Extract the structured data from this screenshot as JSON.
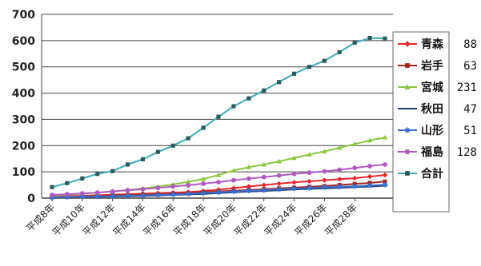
{
  "chart_data": {
    "type": "line",
    "title": "",
    "xlabel": "",
    "ylabel": "",
    "ylim": [
      0,
      700
    ],
    "yticks": [
      0,
      100,
      200,
      300,
      400,
      500,
      600,
      700
    ],
    "grid": true,
    "legend_position": "right",
    "x": [
      "平成8年",
      "平成9年",
      "平成10年",
      "平成11年",
      "平成12年",
      "平成13年",
      "平成14年",
      "平成15年",
      "平成16年",
      "平成17年",
      "平成18年",
      "平成19年",
      "平成20年",
      "平成21年",
      "平成22年",
      "平成23年",
      "平成24年",
      "平成25年",
      "平成26年",
      "平成27年",
      "平成28年",
      "平成29年",
      "平成30年"
    ],
    "x_tick_labels": [
      "平成8年",
      "平成10年",
      "平成12年",
      "平成14年",
      "平成16年",
      "平成18年",
      "平成20年",
      "平成22年",
      "平成24年",
      "平成26年",
      "平成28年"
    ],
    "series": [
      {
        "name": "青森",
        "total_label": "88",
        "color": "#e8262b",
        "marker": "diamond",
        "values": [
          5,
          7,
          9,
          11,
          13,
          15,
          17,
          19,
          21,
          23,
          27,
          32,
          38,
          44,
          50,
          55,
          60,
          64,
          68,
          72,
          76,
          82,
          88
        ]
      },
      {
        "name": "岩手",
        "total_label": "63",
        "color": "#a0281e",
        "marker": "square",
        "values": [
          3,
          5,
          6,
          8,
          10,
          11,
          13,
          15,
          17,
          19,
          22,
          25,
          28,
          31,
          34,
          37,
          40,
          43,
          46,
          50,
          54,
          58,
          63
        ]
      },
      {
        "name": "宮城",
        "total_label": "231",
        "color": "#8dc63f",
        "marker": "triangle",
        "values": [
          10,
          13,
          17,
          21,
          26,
          31,
          37,
          44,
          52,
          62,
          73,
          88,
          105,
          118,
          128,
          140,
          153,
          166,
          178,
          192,
          206,
          220,
          231
        ]
      },
      {
        "name": "秋田",
        "total_label": "47",
        "color": "#1f3b6e",
        "marker": "dash",
        "values": [
          2,
          3,
          4,
          5,
          6,
          7,
          8,
          10,
          12,
          14,
          16,
          19,
          22,
          25,
          27,
          30,
          33,
          35,
          37,
          39,
          42,
          44,
          47
        ]
      },
      {
        "name": "山形",
        "total_label": "51",
        "color": "#3a6fd0",
        "marker": "star",
        "values": [
          3,
          4,
          5,
          6,
          7,
          9,
          10,
          12,
          14,
          16,
          19,
          22,
          25,
          28,
          30,
          33,
          36,
          38,
          41,
          43,
          45,
          48,
          51
        ]
      },
      {
        "name": "福島",
        "total_label": "128",
        "color": "#b05ac0",
        "marker": "circle",
        "values": [
          12,
          15,
          18,
          21,
          25,
          30,
          34,
          39,
          44,
          49,
          55,
          61,
          68,
          74,
          80,
          86,
          92,
          97,
          102,
          108,
          115,
          122,
          128
        ]
      },
      {
        "name": "合計",
        "total_label": "",
        "color": "#2a5a5a",
        "line_color": "#3ea8b8",
        "marker": "square",
        "values": [
          42,
          57,
          75,
          92,
          103,
          128,
          148,
          176,
          200,
          228,
          268,
          310,
          350,
          380,
          410,
          442,
          474,
          500,
          523,
          556,
          592,
          610,
          608
        ]
      }
    ]
  }
}
